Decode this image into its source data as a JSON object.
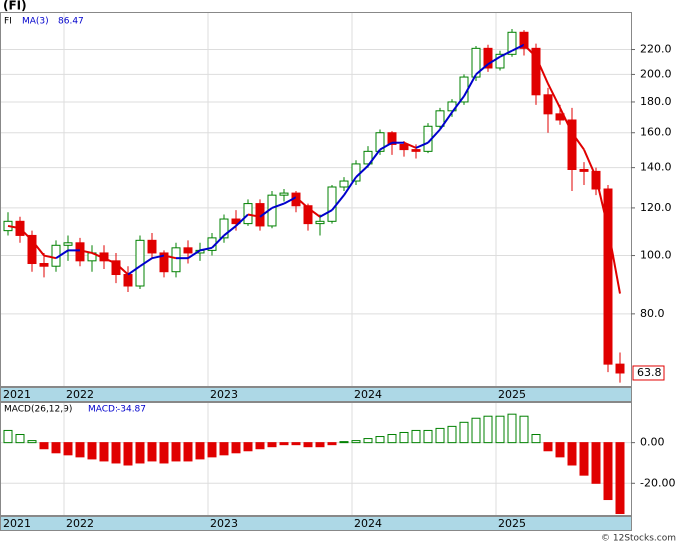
{
  "chart_data": {
    "type": "candlestick",
    "title": "(FI)",
    "ticker": "FI",
    "log_scale": true,
    "grid": true,
    "up_color": "#008000",
    "down_color": "#e00000",
    "open": [
      110,
      114,
      108,
      97,
      96,
      104,
      105,
      98,
      101,
      98,
      93,
      89,
      106,
      101,
      94,
      103,
      101,
      102,
      107,
      115,
      113,
      122,
      112,
      126,
      127,
      121,
      113,
      114,
      130,
      133,
      142,
      149,
      160,
      153,
      150,
      149,
      164,
      174,
      180,
      198,
      221,
      205,
      216,
      235,
      221,
      185,
      172,
      168,
      139,
      138,
      129,
      66
    ],
    "high": [
      118,
      116,
      110,
      101,
      106,
      108,
      107,
      104,
      104,
      101,
      96,
      108,
      109,
      102,
      105,
      106,
      105,
      109,
      117,
      119,
      124,
      124,
      128,
      129,
      128,
      122,
      117,
      131,
      135,
      144,
      152,
      162,
      161,
      155,
      153,
      166,
      176,
      182,
      200,
      223,
      224,
      219,
      238,
      237,
      225,
      190,
      178,
      176,
      143,
      140,
      131,
      69
    ],
    "low": [
      108,
      105,
      94,
      92,
      94,
      98,
      96,
      94,
      95,
      90,
      87,
      88,
      99,
      92,
      92,
      97,
      98,
      100,
      105,
      110,
      112,
      110,
      111,
      123,
      118,
      110,
      108,
      113,
      128,
      131,
      140,
      147,
      147,
      146,
      145,
      148,
      162,
      170,
      178,
      195,
      202,
      203,
      214,
      215,
      178,
      160,
      165,
      128,
      131,
      126,
      64,
      61.5
    ],
    "close": [
      114,
      108,
      97,
      96,
      104,
      105,
      98,
      101,
      98,
      93,
      89,
      106,
      101,
      94,
      103,
      101,
      102,
      107,
      115,
      113,
      122,
      112,
      126,
      127,
      121,
      113,
      114,
      130,
      133,
      142,
      149,
      160,
      153,
      150,
      149,
      164,
      174,
      180,
      198,
      221,
      205,
      216,
      235,
      221,
      185,
      172,
      168,
      139,
      138,
      129,
      66,
      63.8
    ],
    "ma": {
      "name": "MA(3)",
      "up_color": "#0000cc",
      "down_color": "#e00000",
      "values": [
        112,
        111,
        106,
        100,
        99,
        102,
        102,
        101,
        99,
        97,
        93,
        96,
        99,
        100,
        99,
        99,
        102,
        103,
        108,
        112,
        117,
        116,
        120,
        122,
        125,
        120,
        116,
        119,
        126,
        135,
        141,
        150,
        154,
        154,
        151,
        154,
        162,
        173,
        184,
        200,
        208,
        214,
        219,
        224,
        214,
        193,
        176,
        160,
        150,
        135,
        111,
        86.47
      ]
    },
    "ylim": [
      60.7,
      253
    ],
    "yticks": [
      {
        "value": 80,
        "label": "80.0"
      },
      {
        "value": 100,
        "label": "100.0"
      },
      {
        "value": 120,
        "label": "120.0"
      },
      {
        "value": 140,
        "label": "140.0"
      },
      {
        "value": 160,
        "label": "160.0"
      },
      {
        "value": 180,
        "label": "180.0"
      },
      {
        "value": 200,
        "label": "200.0"
      },
      {
        "value": 220,
        "label": "220.0"
      }
    ],
    "xticks": [
      {
        "value": 0,
        "label": "2021"
      },
      {
        "value": 5,
        "label": "2022"
      },
      {
        "value": 17,
        "label": "2023"
      },
      {
        "value": 29,
        "label": "2024"
      },
      {
        "value": 41,
        "label": "2025"
      }
    ],
    "macd": {
      "name": "MACD(26,12,9)",
      "value_label": "MACD:",
      "up_color": "#008000",
      "down_color": "#e00000",
      "values": [
        6,
        4,
        1,
        -3,
        -5,
        -6,
        -7,
        -8,
        -9,
        -10,
        -11,
        -10,
        -9,
        -10,
        -9,
        -9,
        -8,
        -7,
        -6,
        -5,
        -4,
        -3,
        -2,
        -1,
        -1,
        -2,
        -2,
        -1,
        0.5,
        1,
        2,
        3,
        4,
        5,
        6,
        6,
        7,
        8,
        10,
        12,
        13,
        13,
        14,
        13,
        4,
        -4,
        -7,
        -11,
        -16,
        -20,
        -28,
        -34.87
      ],
      "ylim": [
        -35.6,
        19.5
      ],
      "yticks": [
        {
          "value": 0,
          "label": "0.00"
        },
        {
          "value": -20,
          "label": "-20.00"
        }
      ]
    },
    "copyright": "© 12Stocks.com"
  }
}
